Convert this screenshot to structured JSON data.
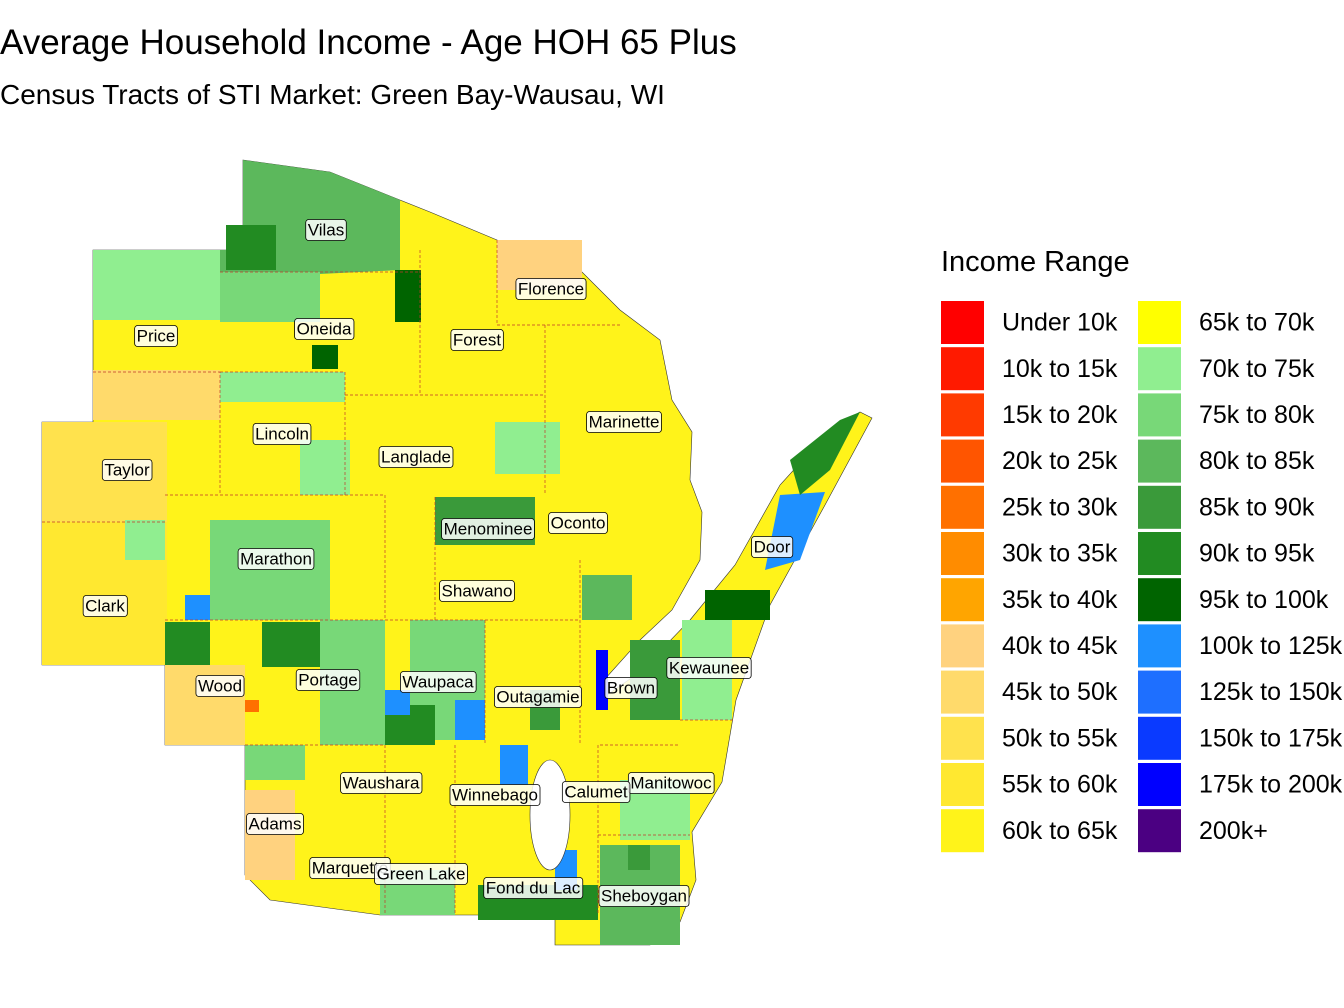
{
  "title": "Average Household Income - Age HOH 65 Plus",
  "subtitle": "Census Tracts of STI Market: Green Bay-Wausau, WI",
  "legend": {
    "title": "Income Range",
    "items": [
      {
        "label": "Under 10k",
        "color": "#FF0000"
      },
      {
        "label": "10k to 15k",
        "color": "#FF1A00"
      },
      {
        "label": "15k to 20k",
        "color": "#FF3A00"
      },
      {
        "label": "20k to 25k",
        "color": "#FF5500"
      },
      {
        "label": "25k to 30k",
        "color": "#FF7000"
      },
      {
        "label": "30k to 35k",
        "color": "#FF8C00"
      },
      {
        "label": "35k to 40k",
        "color": "#FFA500"
      },
      {
        "label": "40k to 45k",
        "color": "#FFD27F"
      },
      {
        "label": "45k to 50k",
        "color": "#FFDA6B"
      },
      {
        "label": "50k to 55k",
        "color": "#FFE24D"
      },
      {
        "label": "55k to 60k",
        "color": "#FFE830"
      },
      {
        "label": "60k to 65k",
        "color": "#FFF31A"
      },
      {
        "label": "65k to 70k",
        "color": "#FFFF00"
      },
      {
        "label": "70k to 75k",
        "color": "#90EE90"
      },
      {
        "label": "75k to 80k",
        "color": "#78D878"
      },
      {
        "label": "80k to 85k",
        "color": "#5CB85C"
      },
      {
        "label": "85k to 90k",
        "color": "#3A9A3A"
      },
      {
        "label": "90k to 95k",
        "color": "#228B22"
      },
      {
        "label": "95k to 100k",
        "color": "#006400"
      },
      {
        "label": "100k to 125k",
        "color": "#1E90FF"
      },
      {
        "label": "125k to 150k",
        "color": "#1E6FFF"
      },
      {
        "label": "150k to 175k",
        "color": "#0A3AFF"
      },
      {
        "label": "175k to 200k",
        "color": "#0000FF"
      },
      {
        "label": "200k+",
        "color": "#4B0082"
      }
    ]
  },
  "counties": [
    "Vilas",
    "Florence",
    "Oneida",
    "Price",
    "Forest",
    "Marinette",
    "Lincoln",
    "Langlade",
    "Taylor",
    "Menominee",
    "Oconto",
    "Door",
    "Marathon",
    "Shawano",
    "Clark",
    "Kewaunee",
    "Wood",
    "Portage",
    "Waupaca",
    "Brown",
    "Outagamie",
    "Waushara",
    "Manitowoc",
    "Winnebago",
    "Calumet",
    "Adams",
    "Marquette",
    "Green Lake",
    "Fond du Lac",
    "Sheboygan"
  ]
}
